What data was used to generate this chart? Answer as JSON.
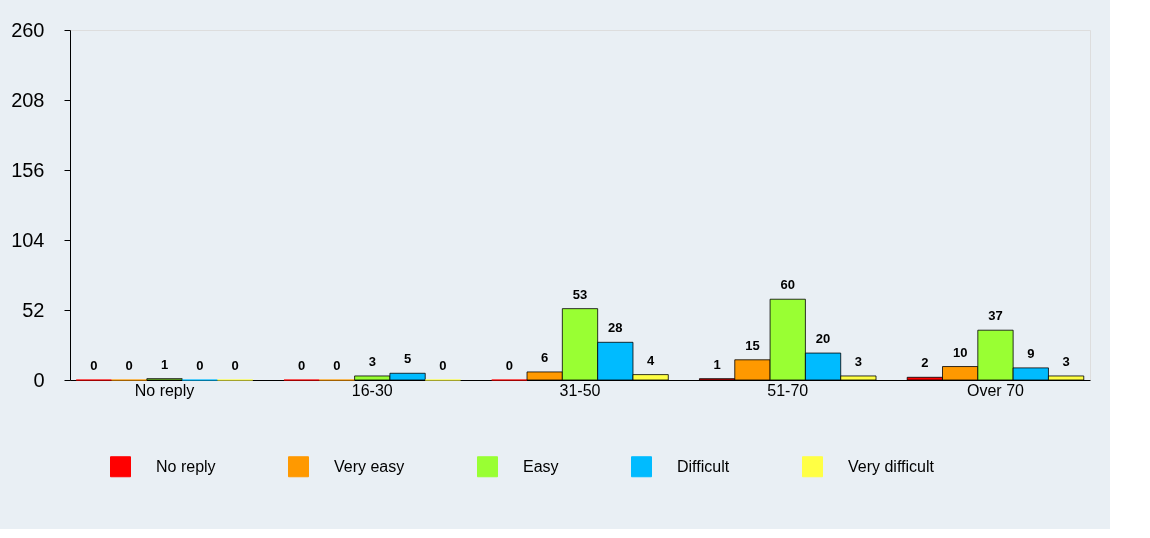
{
  "chart_data": {
    "type": "bar",
    "categories": [
      "No reply",
      "16-30",
      "31-50",
      "51-70",
      "Over 70"
    ],
    "series": [
      {
        "name": "No reply",
        "color": "#ff0000",
        "values": [
          0,
          0,
          0,
          1,
          2
        ]
      },
      {
        "name": "Very easy",
        "color": "#ff9900",
        "values": [
          0,
          0,
          6,
          15,
          10
        ]
      },
      {
        "name": "Easy",
        "color": "#99ff33",
        "values": [
          1,
          3,
          53,
          60,
          37
        ]
      },
      {
        "name": "Difficult",
        "color": "#00bbff",
        "values": [
          0,
          5,
          28,
          20,
          9
        ]
      },
      {
        "name": "Very difficult",
        "color": "#ffff44",
        "values": [
          0,
          0,
          4,
          3,
          3
        ]
      }
    ],
    "ylim": [
      0,
      260
    ],
    "yticks": [
      0,
      52,
      104,
      156,
      208,
      260
    ],
    "grid": false,
    "legend": "bottom",
    "data_labels": true
  }
}
